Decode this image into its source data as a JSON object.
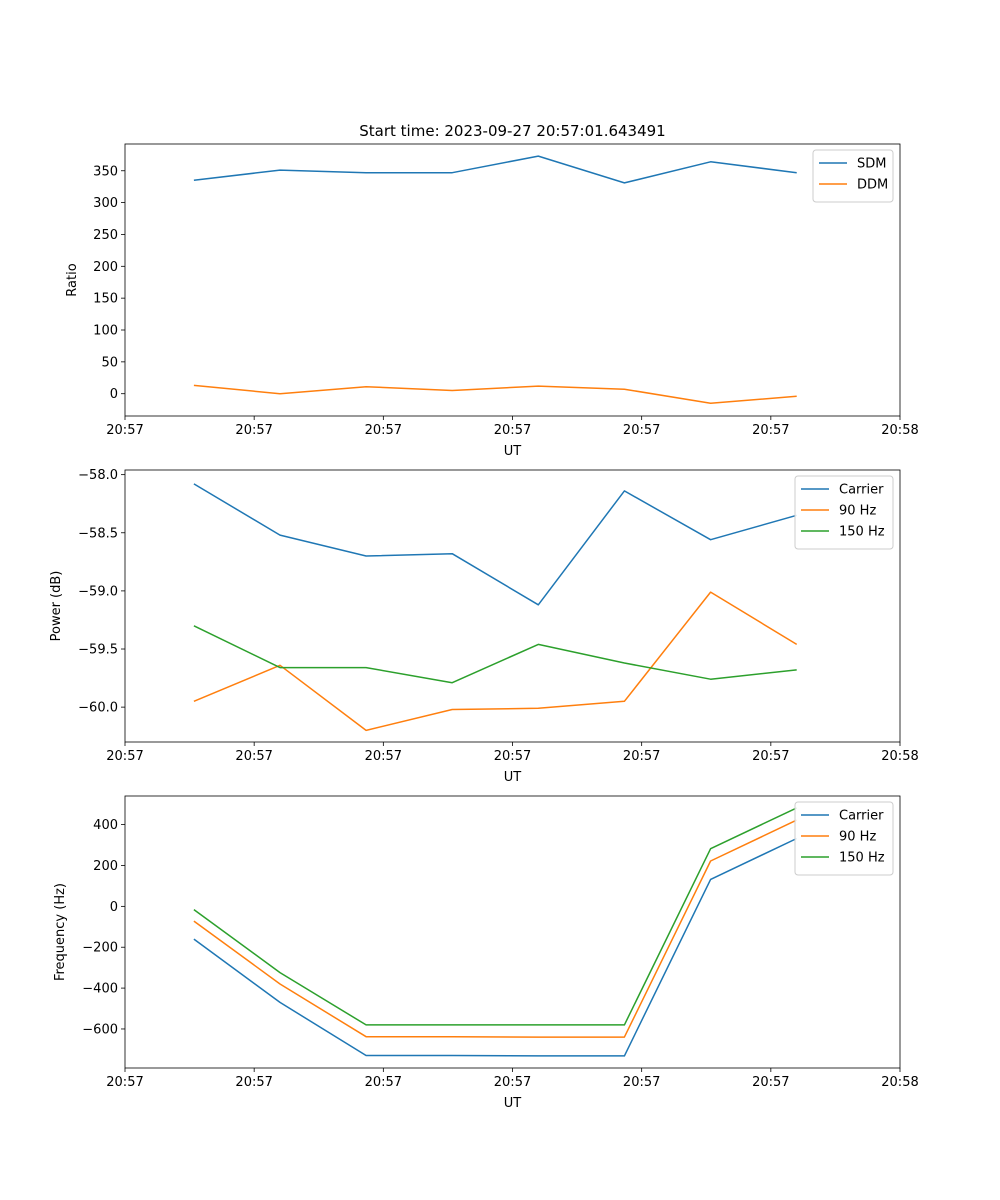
{
  "figure": {
    "title": "Start time: 2023-09-27 20:57:01.643491"
  },
  "chart_data": [
    {
      "type": "line",
      "title": "Start time: 2023-09-27 20:57:01.643491",
      "xlabel": "UT",
      "ylabel": "Ratio",
      "x": [
        1,
        2,
        3,
        4,
        5,
        6,
        7,
        8
      ],
      "xlim": [
        0.2,
        9.2
      ],
      "xticks": [
        0.2,
        1.7,
        3.2,
        4.7,
        6.2,
        7.7,
        9.2
      ],
      "xtick_labels": [
        "20:57",
        "20:57",
        "20:57",
        "20:57",
        "20:57",
        "20:57",
        "20:58"
      ],
      "ylim": [
        -35,
        392
      ],
      "yticks": [
        0,
        50,
        100,
        150,
        200,
        250,
        300,
        350
      ],
      "ytick_labels": [
        "0",
        "50",
        "100",
        "150",
        "200",
        "250",
        "300",
        "350"
      ],
      "legend_position": "top-right",
      "series": [
        {
          "name": "SDM",
          "color": "#1f77b4",
          "values": [
            335,
            351,
            347,
            347,
            373,
            331,
            364,
            347
          ]
        },
        {
          "name": "DDM",
          "color": "#ff7f0e",
          "values": [
            13,
            0,
            11,
            5,
            12,
            7,
            -15,
            -4
          ]
        }
      ]
    },
    {
      "type": "line",
      "title": "",
      "xlabel": "UT",
      "ylabel": "Power (dB)",
      "x": [
        1,
        2,
        3,
        4,
        5,
        6,
        7,
        8
      ],
      "xlim": [
        0.2,
        9.2
      ],
      "xticks": [
        0.2,
        1.7,
        3.2,
        4.7,
        6.2,
        7.7,
        9.2
      ],
      "xtick_labels": [
        "20:57",
        "20:57",
        "20:57",
        "20:57",
        "20:57",
        "20:57",
        "20:58"
      ],
      "ylim": [
        -60.3,
        -57.96
      ],
      "yticks": [
        -60.0,
        -59.5,
        -59.0,
        -58.5,
        -58.0
      ],
      "ytick_labels": [
        "−60.0",
        "−59.5",
        "−59.0",
        "−58.5",
        "−58.0"
      ],
      "legend_position": "top-right",
      "series": [
        {
          "name": "Carrier",
          "color": "#1f77b4",
          "values": [
            -58.08,
            -58.52,
            -58.7,
            -58.68,
            -59.12,
            -58.14,
            -58.56,
            -58.35
          ]
        },
        {
          "name": "90 Hz",
          "color": "#ff7f0e",
          "values": [
            -59.95,
            -59.64,
            -60.2,
            -60.02,
            -60.01,
            -59.95,
            -59.01,
            -59.46
          ]
        },
        {
          "name": "150 Hz",
          "color": "#2ca02c",
          "values": [
            -59.3,
            -59.66,
            -59.66,
            -59.79,
            -59.46,
            -59.62,
            -59.76,
            -59.68
          ]
        }
      ]
    },
    {
      "type": "line",
      "title": "",
      "xlabel": "UT",
      "ylabel": "Frequency (Hz)",
      "x": [
        1,
        2,
        3,
        4,
        5,
        6,
        7,
        8
      ],
      "xlim": [
        0.2,
        9.2
      ],
      "xticks": [
        0.2,
        1.7,
        3.2,
        4.7,
        6.2,
        7.7,
        9.2
      ],
      "xtick_labels": [
        "20:57",
        "20:57",
        "20:57",
        "20:57",
        "20:57",
        "20:57",
        "20:58"
      ],
      "ylim": [
        -791,
        540
      ],
      "yticks": [
        -600,
        -400,
        -200,
        0,
        200,
        400
      ],
      "ytick_labels": [
        "−600",
        "−400",
        "−200",
        "0",
        "200",
        "400"
      ],
      "legend_position": "top-right",
      "series": [
        {
          "name": "Carrier",
          "color": "#1f77b4",
          "values": [
            -160,
            -470,
            -730,
            -730,
            -732,
            -732,
            132,
            332
          ]
        },
        {
          "name": "90 Hz",
          "color": "#ff7f0e",
          "values": [
            -72,
            -380,
            -638,
            -638,
            -640,
            -640,
            222,
            422
          ]
        },
        {
          "name": "150 Hz",
          "color": "#2ca02c",
          "values": [
            -16,
            -324,
            -580,
            -580,
            -580,
            -580,
            282,
            482
          ]
        }
      ]
    }
  ]
}
